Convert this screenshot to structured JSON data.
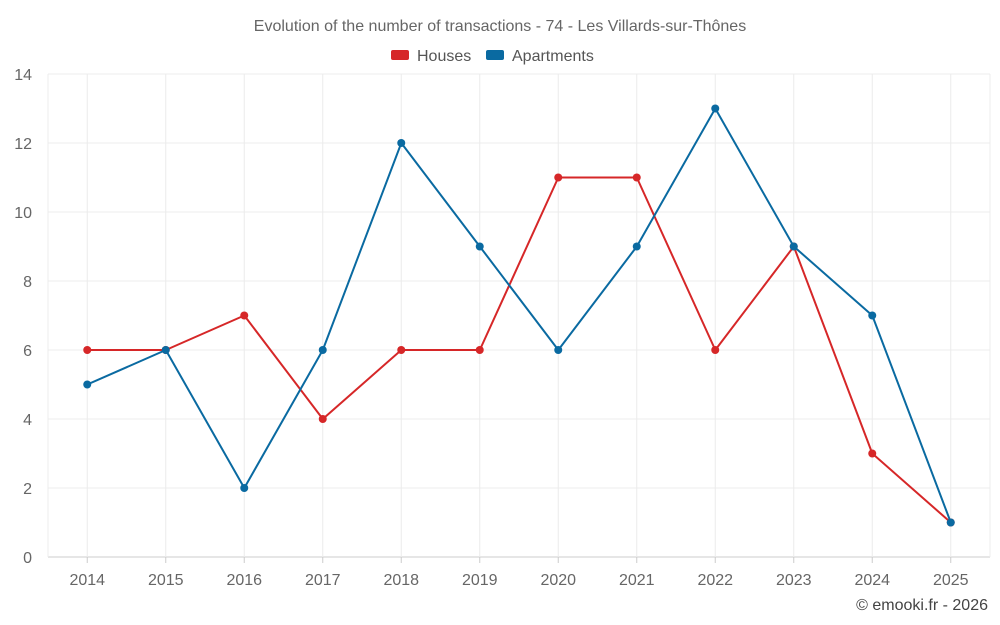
{
  "chart_data": {
    "type": "line",
    "title": "Evolution of the number of transactions - 74 - Les Villards-sur-Thônes",
    "categories": [
      "2014",
      "2015",
      "2016",
      "2017",
      "2018",
      "2019",
      "2020",
      "2021",
      "2022",
      "2023",
      "2024",
      "2025"
    ],
    "series": [
      {
        "name": "Houses",
        "color": "#d62728",
        "values": [
          6,
          6,
          7,
          4,
          6,
          6,
          11,
          11,
          6,
          9,
          3,
          1
        ]
      },
      {
        "name": "Apartments",
        "color": "#0a6aa1",
        "values": [
          5,
          6,
          2,
          6,
          12,
          9,
          6,
          9,
          13,
          9,
          7,
          1
        ]
      }
    ],
    "ylim": [
      0,
      14
    ],
    "yticks": [
      0,
      2,
      4,
      6,
      8,
      10,
      12,
      14
    ],
    "xlabel": "",
    "ylabel": "",
    "grid": true,
    "legend": "top-center"
  },
  "credit": "© emooki.fr - 2026"
}
